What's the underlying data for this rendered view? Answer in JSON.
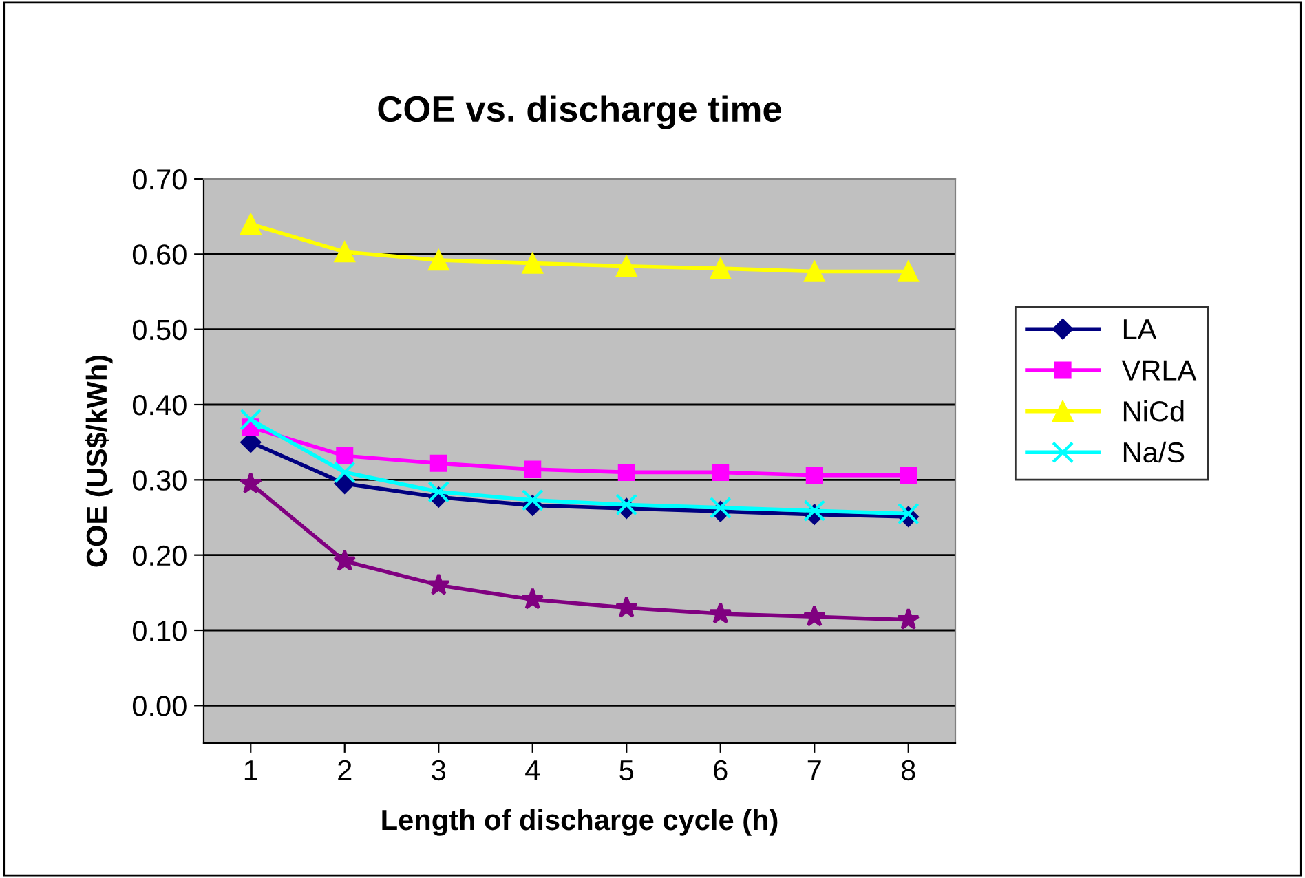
{
  "chart_data": {
    "type": "line",
    "title": "COE vs. discharge time",
    "xlabel": "Length of discharge cycle (h)",
    "ylabel": "COE (US$/kWh)",
    "categories": [
      "1",
      "2",
      "3",
      "4",
      "5",
      "6",
      "7",
      "8"
    ],
    "series": [
      {
        "name": "LA",
        "color": "#000080",
        "marker": "diamond",
        "values": [
          0.35,
          0.295,
          0.277,
          0.266,
          0.262,
          0.258,
          0.254,
          0.251
        ]
      },
      {
        "name": "VRLA",
        "color": "#ff00ff",
        "marker": "square",
        "values": [
          0.37,
          0.332,
          0.322,
          0.314,
          0.31,
          0.31,
          0.306,
          0.306
        ]
      },
      {
        "name": "NiCd",
        "color": "#ffff00",
        "marker": "triangle",
        "values": [
          0.64,
          0.603,
          0.592,
          0.588,
          0.584,
          0.581,
          0.577,
          0.577
        ]
      },
      {
        "name": "Na/S",
        "color": "#00ffff",
        "marker": "cross",
        "values": [
          0.38,
          0.31,
          0.284,
          0.273,
          0.267,
          0.263,
          0.259,
          0.255
        ]
      },
      {
        "color": "#800080",
        "marker": "star",
        "values": [
          0.295,
          0.192,
          0.16,
          0.141,
          0.13,
          0.122,
          0.118,
          0.114
        ]
      }
    ],
    "ylim": [
      -0.05,
      0.7
    ],
    "yticks": [
      {
        "value": 0,
        "label": "0.00"
      },
      {
        "value": 0.1,
        "label": "0.10"
      },
      {
        "value": 0.2,
        "label": "0.20"
      },
      {
        "value": 0.3,
        "label": "0.30"
      },
      {
        "value": 0.4,
        "label": "0.40"
      },
      {
        "value": 0.5,
        "label": "0.50"
      },
      {
        "value": 0.6,
        "label": "0.60"
      },
      {
        "value": 0.7,
        "label": "0.70"
      }
    ],
    "grid": "y",
    "legend": "right"
  }
}
